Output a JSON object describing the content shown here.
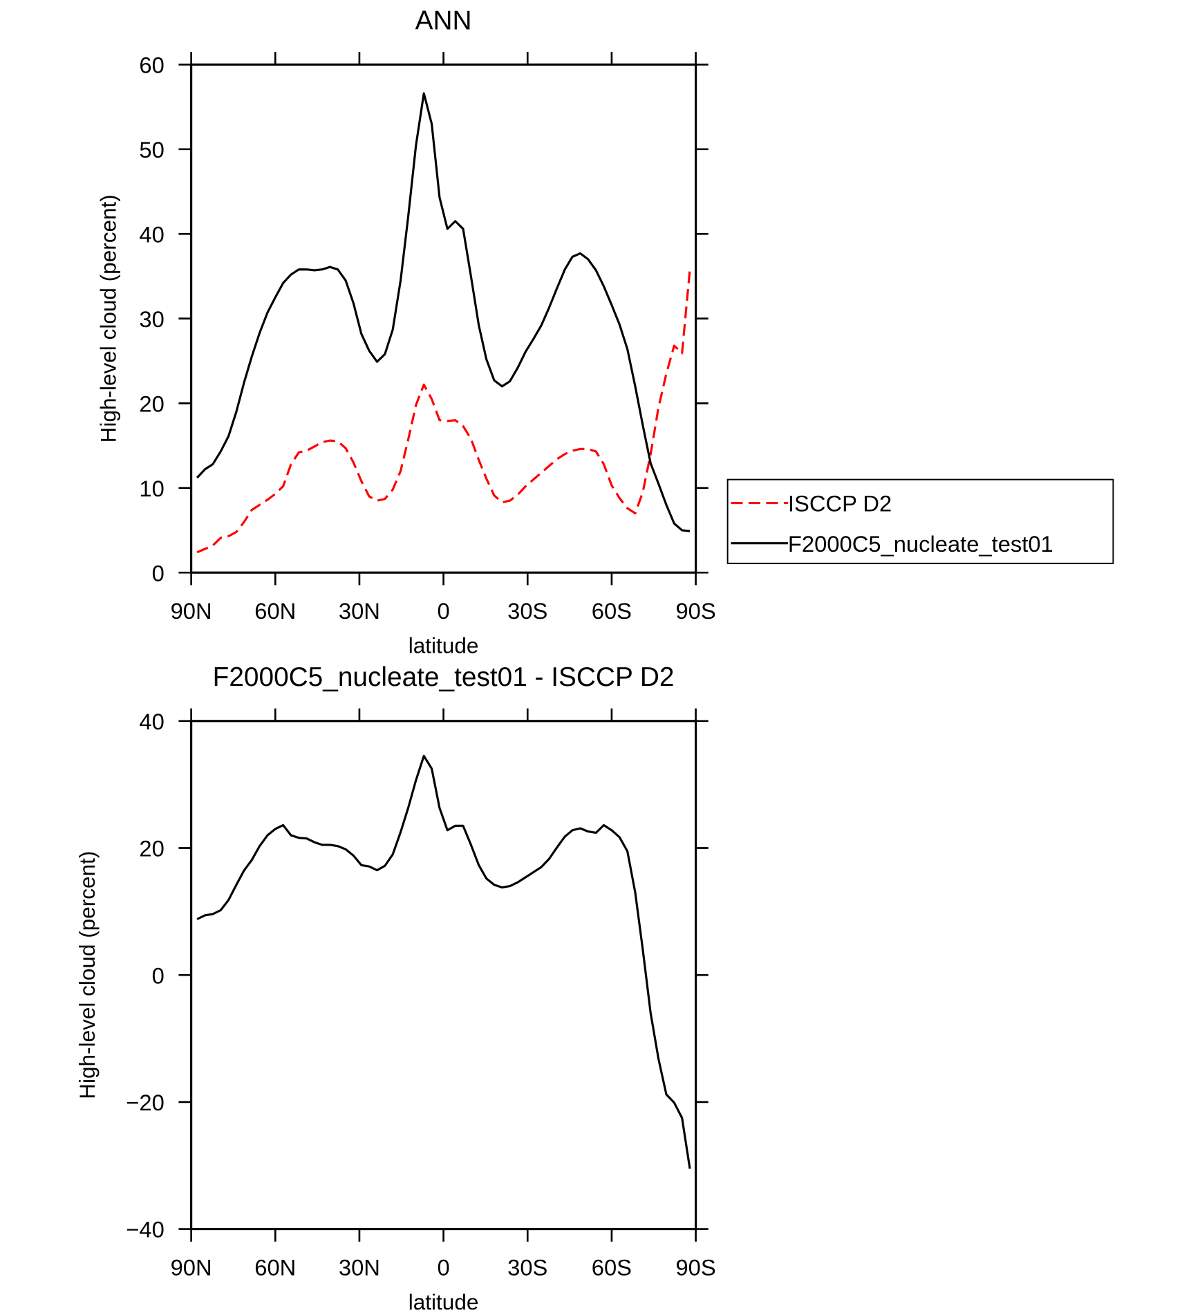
{
  "chart_data": [
    {
      "type": "line",
      "title": "ANN",
      "x_label": "latitude",
      "y_label": "High-level cloud (percent)",
      "x": [
        87.9,
        85.1,
        82.3,
        79.5,
        76.7,
        73.9,
        71.1,
        68.4,
        65.6,
        62.8,
        60.0,
        57.2,
        54.4,
        51.6,
        48.8,
        46.0,
        43.3,
        40.5,
        37.7,
        34.9,
        32.1,
        29.3,
        26.5,
        23.7,
        20.9,
        18.1,
        15.3,
        12.6,
        9.8,
        7.0,
        4.2,
        1.4,
        -1.4,
        -4.2,
        -7.0,
        -9.8,
        -12.6,
        -15.3,
        -18.1,
        -20.9,
        -23.7,
        -26.5,
        -29.3,
        -32.1,
        -34.9,
        -37.7,
        -40.5,
        -43.3,
        -46.0,
        -48.8,
        -51.6,
        -54.4,
        -57.2,
        -60.0,
        -62.8,
        -65.6,
        -68.4,
        -71.1,
        -73.9,
        -76.7,
        -79.5,
        -82.3,
        -85.1,
        -87.9
      ],
      "series": [
        {
          "name": "ISCCP D2",
          "color": "#ff0000",
          "linestyle": "dashed",
          "values": [
            2.4,
            2.8,
            3.2,
            4.1,
            4.3,
            4.8,
            6.0,
            7.4,
            8.0,
            8.6,
            9.3,
            10.2,
            12.8,
            14.2,
            14.4,
            14.9,
            15.4,
            15.6,
            15.5,
            14.7,
            13.0,
            10.8,
            9.0,
            8.5,
            8.7,
            9.8,
            12.0,
            15.7,
            19.8,
            22.2,
            20.5,
            18.0,
            17.9,
            18.0,
            17.3,
            15.8,
            13.3,
            11.1,
            9.1,
            8.3,
            8.5,
            9.2,
            10.2,
            11.0,
            11.8,
            12.6,
            13.4,
            14.0,
            14.4,
            14.6,
            14.6,
            14.3,
            12.8,
            10.3,
            8.8,
            7.6,
            7.0,
            9.5,
            14.0,
            19.5,
            23.5,
            26.8,
            25.9,
            35.8
          ]
        },
        {
          "name": "F2000C5_nucleate_test01",
          "color": "#000000",
          "linestyle": "solid",
          "values": [
            11.2,
            12.2,
            12.8,
            14.3,
            16.1,
            19.0,
            22.5,
            25.5,
            28.3,
            30.7,
            32.5,
            34.2,
            35.2,
            35.8,
            35.8,
            35.7,
            35.8,
            36.1,
            35.8,
            34.5,
            31.8,
            28.2,
            26.2,
            24.9,
            25.8,
            28.7,
            34.5,
            42.0,
            50.5,
            56.6,
            53.0,
            44.3,
            40.6,
            41.5,
            40.6,
            35.0,
            29.2,
            25.2,
            22.7,
            22.0,
            22.6,
            24.2,
            26.1,
            27.6,
            29.2,
            31.3,
            33.6,
            35.8,
            37.3,
            37.7,
            37.0,
            35.7,
            33.8,
            31.6,
            29.3,
            26.4,
            22.0,
            17.4,
            12.9,
            10.5,
            8.0,
            5.8,
            5.0,
            4.9
          ]
        }
      ],
      "xlim": [
        90,
        -90
      ],
      "xticks": [
        {
          "value": 90,
          "label": "90N"
        },
        {
          "value": 60,
          "label": "60N"
        },
        {
          "value": 30,
          "label": "30N"
        },
        0,
        {
          "value": -30,
          "label": "30S"
        },
        {
          "value": -60,
          "label": "60S"
        },
        {
          "value": -90,
          "label": "90S"
        }
      ],
      "ylim": [
        0,
        60
      ],
      "yticks": [
        0,
        10,
        20,
        30,
        40,
        50,
        60
      ],
      "legend": "right"
    },
    {
      "type": "line",
      "title": "F2000C5_nucleate_test01 - ISCCP D2",
      "x_label": "latitude",
      "y_label": "High-level cloud (percent)",
      "x": [
        87.9,
        85.1,
        82.3,
        79.5,
        76.7,
        73.9,
        71.1,
        68.4,
        65.6,
        62.8,
        60.0,
        57.2,
        54.4,
        51.6,
        48.8,
        46.0,
        43.3,
        40.5,
        37.7,
        34.9,
        32.1,
        29.3,
        26.5,
        23.7,
        20.9,
        18.1,
        15.3,
        12.6,
        9.8,
        7.0,
        4.2,
        1.4,
        -1.4,
        -4.2,
        -7.0,
        -9.8,
        -12.6,
        -15.3,
        -18.1,
        -20.9,
        -23.7,
        -26.5,
        -29.3,
        -32.1,
        -34.9,
        -37.7,
        -40.5,
        -43.3,
        -46.0,
        -48.8,
        -51.6,
        -54.4,
        -57.2,
        -60.0,
        -62.8,
        -65.6,
        -68.4,
        -71.1,
        -73.9,
        -76.7,
        -79.5,
        -82.3,
        -85.1,
        -87.9
      ],
      "series": [
        {
          "color": "#000000",
          "linestyle": "solid",
          "values": [
            8.8,
            9.4,
            9.6,
            10.2,
            11.8,
            14.2,
            16.5,
            18.1,
            20.3,
            22.0,
            23.0,
            23.6,
            22.0,
            21.6,
            21.5,
            20.9,
            20.5,
            20.5,
            20.3,
            19.8,
            18.8,
            17.3,
            17.1,
            16.5,
            17.2,
            19.0,
            22.5,
            26.3,
            30.7,
            34.5,
            32.5,
            26.3,
            22.8,
            23.5,
            23.5,
            20.5,
            17.3,
            15.2,
            14.2,
            13.8,
            14.0,
            14.6,
            15.4,
            16.2,
            17.0,
            18.3,
            20.1,
            21.8,
            22.8,
            23.1,
            22.6,
            22.4,
            23.6,
            22.8,
            21.7,
            19.5,
            13.0,
            4.0,
            -6.0,
            -13.2,
            -18.8,
            -20.1,
            -22.5,
            -30.5
          ]
        }
      ],
      "xlim": [
        90,
        -90
      ],
      "xticks": [
        {
          "value": 90,
          "label": "90N"
        },
        {
          "value": 60,
          "label": "60N"
        },
        {
          "value": 30,
          "label": "30N"
        },
        0,
        {
          "value": -30,
          "label": "30S"
        },
        {
          "value": -60,
          "label": "60S"
        },
        {
          "value": -90,
          "label": "90S"
        }
      ],
      "ylim": [
        -40,
        40
      ],
      "yticks": [
        {
          "value": -40,
          "label": "−40"
        },
        {
          "value": -20,
          "label": "−20"
        },
        0,
        20,
        40
      ]
    }
  ]
}
